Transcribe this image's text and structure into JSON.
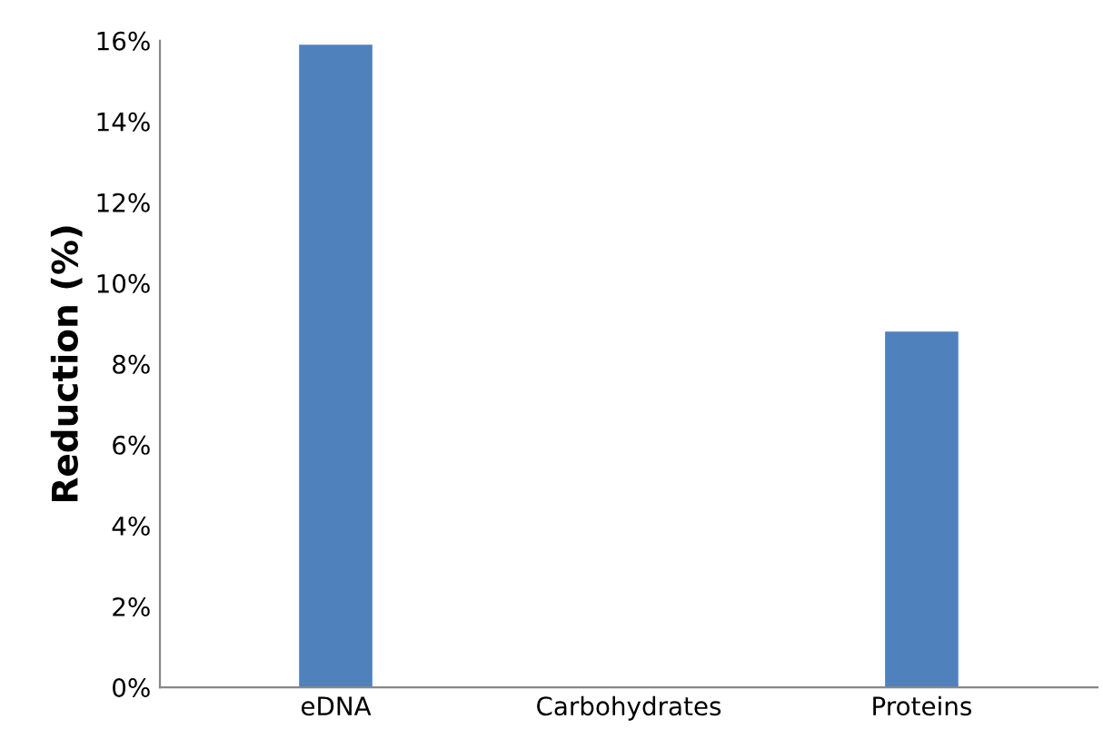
{
  "chart_data": {
    "type": "bar",
    "ylabel": "Reduction (%)",
    "categories": [
      "eDNA",
      "Carbohydrates",
      "Proteins"
    ],
    "values": [
      15.9,
      0,
      8.8
    ],
    "color": "#4f81bd",
    "ylim": [
      0,
      16
    ],
    "yticks": [
      {
        "value": 0,
        "label": "0%"
      },
      {
        "value": 2,
        "label": "2%"
      },
      {
        "value": 4,
        "label": "4%"
      },
      {
        "value": 6,
        "label": "6%"
      },
      {
        "value": 8,
        "label": "8%"
      },
      {
        "value": 10,
        "label": "10%"
      },
      {
        "value": 12,
        "label": "12%"
      },
      {
        "value": 14,
        "label": "14%"
      },
      {
        "value": 16,
        "label": "16%"
      }
    ],
    "grid": false,
    "legend": false
  }
}
